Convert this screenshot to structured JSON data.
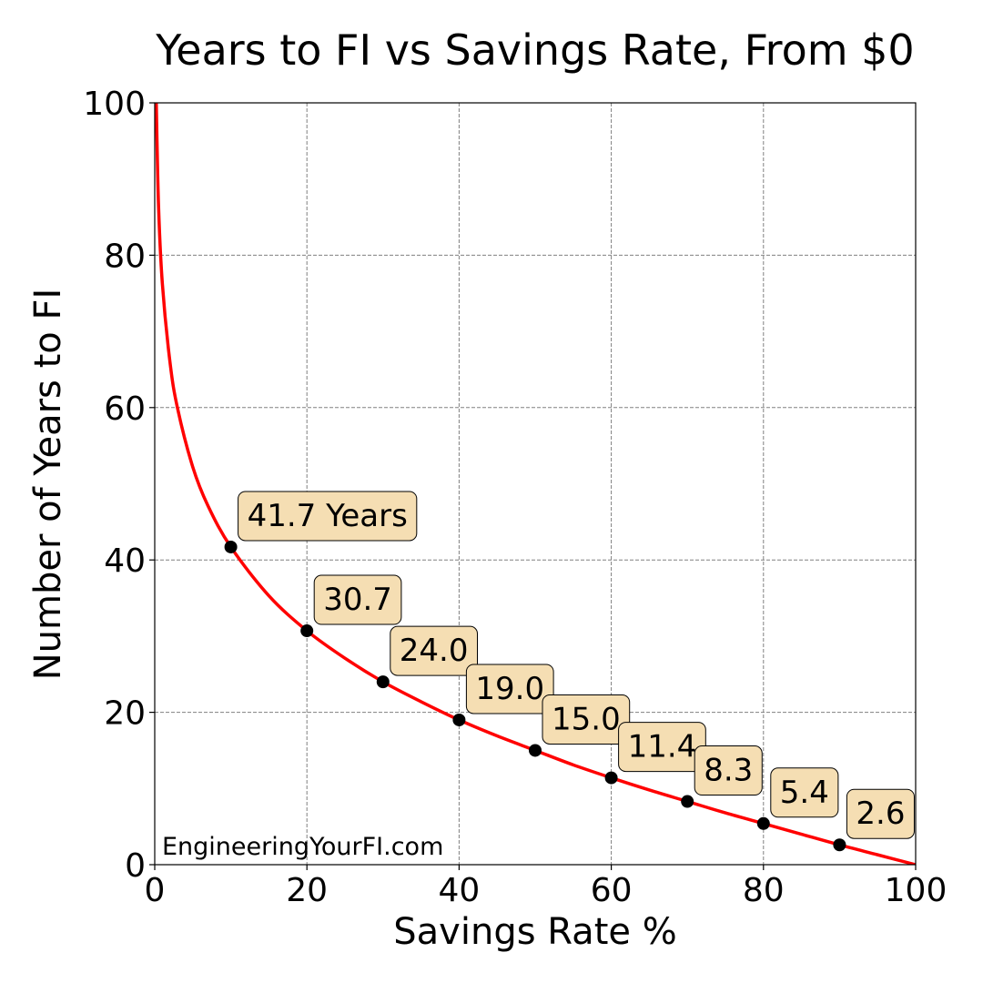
{
  "chart_data": {
    "type": "line",
    "title": "Years to FI vs Savings Rate, From $0",
    "xlabel": "Savings Rate %",
    "ylabel": "Number of Years to FI",
    "xlim": [
      0,
      100
    ],
    "ylim": [
      0,
      100
    ],
    "xticks": [
      0,
      20,
      40,
      60,
      80,
      100
    ],
    "yticks": [
      0,
      20,
      40,
      60,
      80,
      100
    ],
    "grid": true,
    "watermark": "EngineeringYourFI.com",
    "curve_color": "#ff0000",
    "marker_color": "#000000",
    "label_box_color": "#f5deb3",
    "curve": {
      "x": [
        0.2,
        0.5,
        1,
        2,
        3,
        5,
        7,
        10,
        15,
        20,
        25,
        30,
        35,
        40,
        45,
        50,
        55,
        60,
        65,
        70,
        75,
        80,
        85,
        90,
        95,
        100
      ],
      "y": [
        100.1,
        86.5,
        76.3,
        66.0,
        59.9,
        52.2,
        47.1,
        41.7,
        35.3,
        30.7,
        27.1,
        24.0,
        21.4,
        19.0,
        16.9,
        15.0,
        13.1,
        11.4,
        9.8,
        8.3,
        6.8,
        5.4,
        4.0,
        2.6,
        1.3,
        0
      ]
    },
    "points": [
      {
        "x": 10,
        "y": 41.7,
        "label": "41.7 Years"
      },
      {
        "x": 20,
        "y": 30.7,
        "label": "30.7"
      },
      {
        "x": 30,
        "y": 24.0,
        "label": "24.0"
      },
      {
        "x": 40,
        "y": 19.0,
        "label": "19.0"
      },
      {
        "x": 50,
        "y": 15.0,
        "label": "15.0"
      },
      {
        "x": 60,
        "y": 11.4,
        "label": "11.4"
      },
      {
        "x": 70,
        "y": 8.3,
        "label": "8.3"
      },
      {
        "x": 80,
        "y": 5.4,
        "label": "5.4"
      },
      {
        "x": 90,
        "y": 2.6,
        "label": "2.6"
      }
    ]
  }
}
